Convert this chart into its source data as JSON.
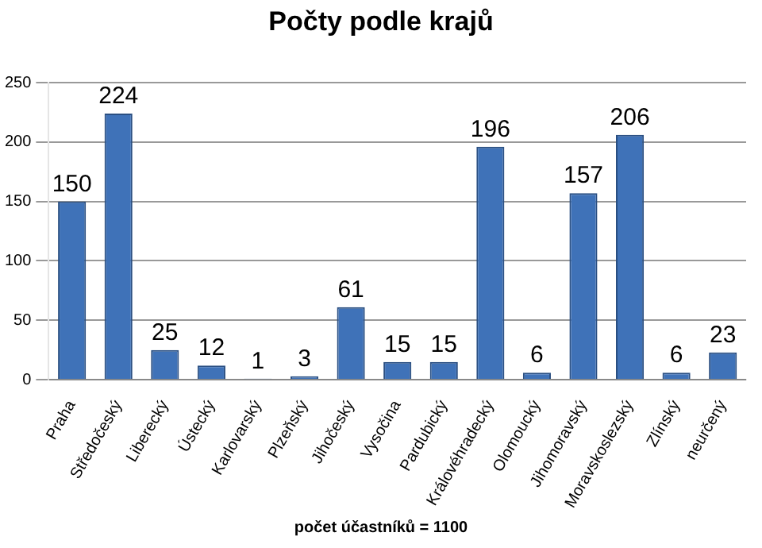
{
  "chart_data": {
    "type": "bar",
    "title": "Počty podle krajů",
    "categories": [
      "Praha",
      "Středočeský",
      "Liberecký",
      "Ústecký",
      "Karlovarský",
      "Plzeňský",
      "Jihočeský",
      "Vysočina",
      "Pardubický",
      "Královéhradecký",
      "Olomoucký",
      "Jihomoravský",
      "Moravskoslezský",
      "Zlínský",
      "neurčený"
    ],
    "values": [
      150,
      224,
      25,
      12,
      1,
      3,
      61,
      15,
      15,
      196,
      6,
      157,
      206,
      6,
      23
    ],
    "color": "#3f72b8",
    "ylim": [
      0,
      250
    ],
    "yticks": [
      0,
      50,
      100,
      150,
      200,
      250
    ],
    "grid": "y",
    "data_labels": true,
    "annotations": [
      "počet účastníků = 1100"
    ]
  }
}
